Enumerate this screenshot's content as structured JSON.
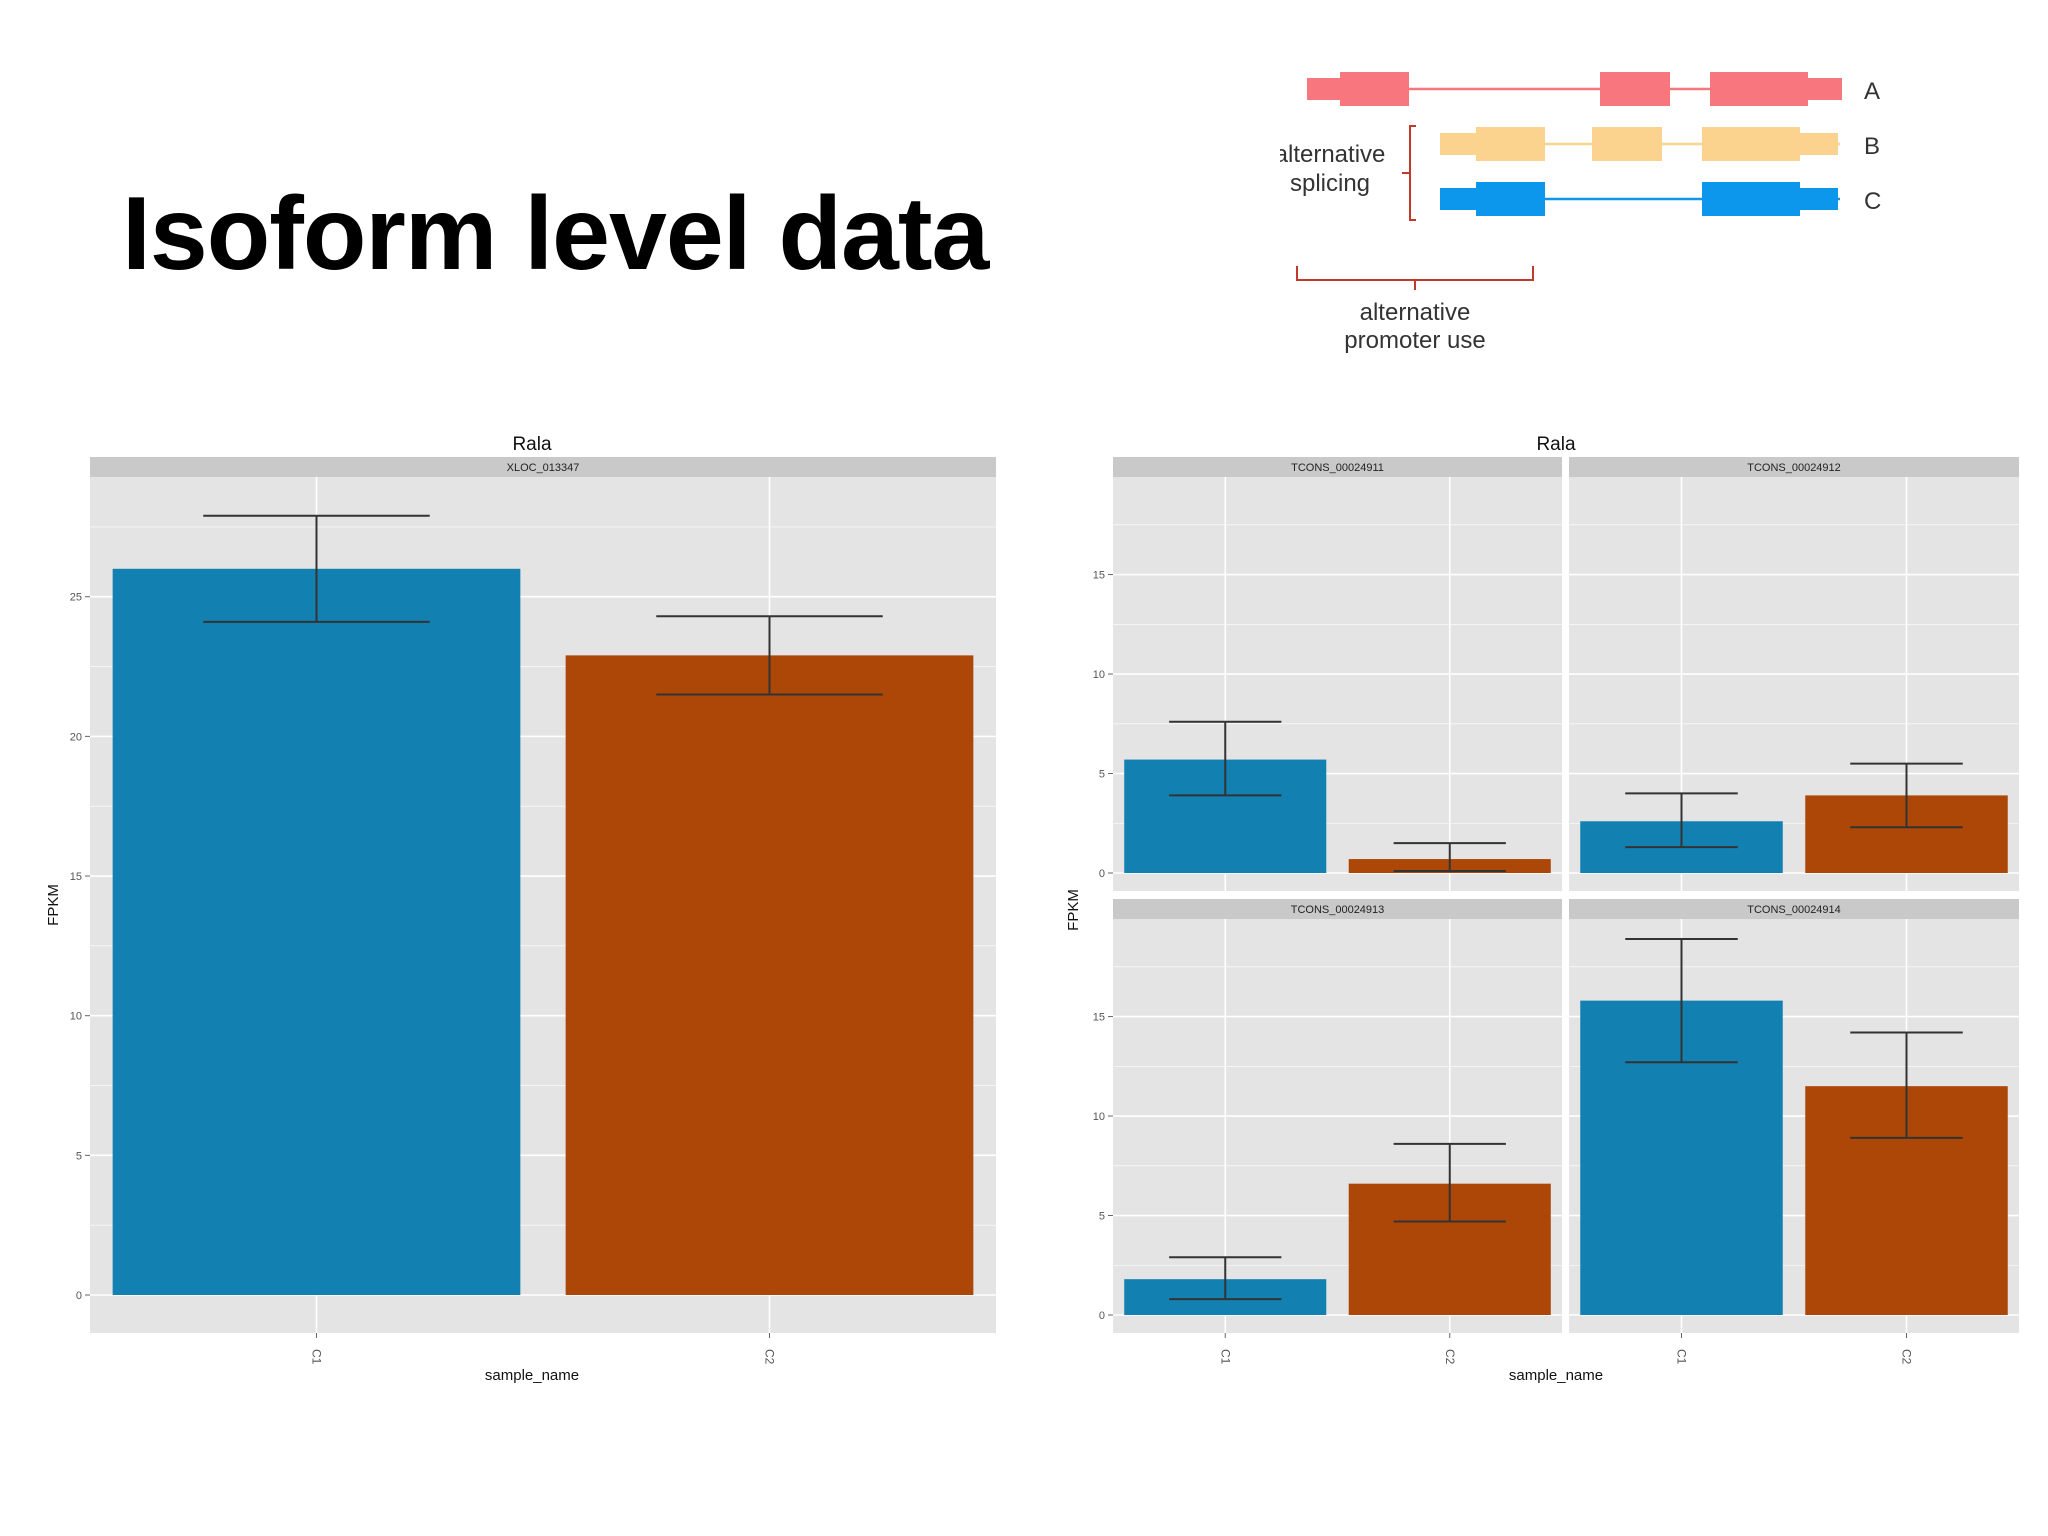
{
  "slide": {
    "title": "Isoform level data"
  },
  "diagram": {
    "isoforms": [
      {
        "label": "A",
        "color": "#f8767d"
      },
      {
        "label": "B",
        "color": "#fbd38e"
      },
      {
        "label": "C",
        "color": "#0c96ec"
      }
    ],
    "splicing_label": [
      "alternative",
      "splicing"
    ],
    "promoter_label": [
      "alternative",
      "promoter use"
    ],
    "bracket_color": "#c0392b"
  },
  "colors": {
    "C1": "#1380b2",
    "C2": "#ad4707",
    "panel_bg": "#e4e4e4",
    "strip_bg": "#c9c9c9",
    "grid": "#ffffff",
    "errorbar": "#333333"
  },
  "chart_data": [
    {
      "type": "bar",
      "title": "Rala",
      "xlabel": "sample_name",
      "ylabel": "FPKM",
      "ylim": [
        0,
        29
      ],
      "yticks": [
        0,
        5,
        10,
        15,
        20,
        25
      ],
      "categories": [
        "C1",
        "C2"
      ],
      "panels": [
        {
          "strip": "XLOC_013347",
          "values": [
            26.0,
            22.9
          ],
          "error_low": [
            24.1,
            21.5
          ],
          "error_high": [
            27.9,
            24.3
          ]
        }
      ]
    },
    {
      "type": "bar",
      "title": "Rala",
      "xlabel": "sample_name",
      "ylabel": "FPKM",
      "ylim": [
        0,
        19.5
      ],
      "yticks": [
        0,
        5,
        10,
        15
      ],
      "categories": [
        "C1",
        "C2"
      ],
      "panels": [
        {
          "strip": "TCONS_00024911",
          "values": [
            5.7,
            0.7
          ],
          "error_low": [
            3.9,
            0.1
          ],
          "error_high": [
            7.6,
            1.5
          ]
        },
        {
          "strip": "TCONS_00024912",
          "values": [
            2.6,
            3.9
          ],
          "error_low": [
            1.3,
            2.3
          ],
          "error_high": [
            4.0,
            5.5
          ]
        },
        {
          "strip": "TCONS_00024913",
          "values": [
            1.8,
            6.6
          ],
          "error_low": [
            0.8,
            4.7
          ],
          "error_high": [
            2.9,
            8.6
          ]
        },
        {
          "strip": "TCONS_00024914",
          "values": [
            15.8,
            11.5
          ],
          "error_low": [
            12.7,
            8.9
          ],
          "error_high": [
            18.9,
            14.2
          ]
        }
      ]
    }
  ]
}
